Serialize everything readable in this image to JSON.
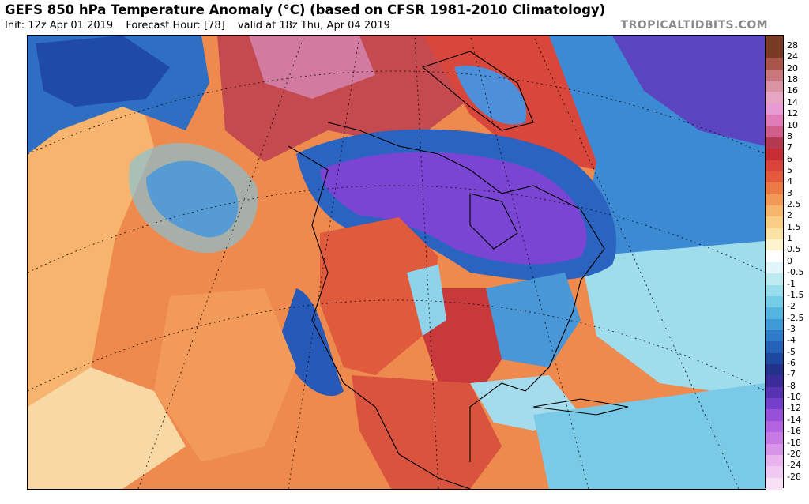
{
  "header": {
    "title": "GEFS 850 hPa Temperature Anomaly (°C) (based on CFSR 1981-2010 Climatology)",
    "init": "Init: 12z Apr 01 2019",
    "forecast_hour": "Forecast Hour: [78]",
    "valid": "valid at 18z Thu, Apr 04 2019",
    "brand": "TROPICALTIDBITS.COM"
  },
  "colorbar": {
    "labels": [
      "28",
      "24",
      "20",
      "18",
      "16",
      "14",
      "12",
      "10",
      "8",
      "7",
      "6",
      "5",
      "4",
      "3",
      "2.5",
      "2",
      "1.5",
      "1",
      "0.5",
      "0",
      "-0.5",
      "-1",
      "-1.5",
      "-2",
      "-2.5",
      "-3",
      "-4",
      "-5",
      "-6",
      "-7",
      "-8",
      "-10",
      "-12",
      "-14",
      "-16",
      "-18",
      "-20",
      "-24",
      "-28"
    ],
    "colors": [
      "#7a3b24",
      "#a8564b",
      "#c9777a",
      "#d993a3",
      "#e6a6c3",
      "#e99ad2",
      "#e07cb8",
      "#cf5f8a",
      "#b43a52",
      "#c62e36",
      "#d9443a",
      "#e35a3c",
      "#ec7a45",
      "#f19a57",
      "#f5b56d",
      "#f8cd86",
      "#fbe3a6",
      "#fdf3cc",
      "#ffffff",
      "#e2f6f9",
      "#bdebf2",
      "#98ddec",
      "#74cde6",
      "#54b6e0",
      "#3d9ad6",
      "#2e7cc9",
      "#2561b6",
      "#1d48a0",
      "#24318a",
      "#3a2b98",
      "#5733b2",
      "#7440c9",
      "#9651d8",
      "#b363df",
      "#c77ae4",
      "#d895e8",
      "#e8b2ee",
      "#f0c9f2",
      "#f8e0f6"
    ]
  },
  "map": {
    "background_color": "#ef8a4f",
    "cold_color": "#7a45d2",
    "warm_color": "#d6443f",
    "coastline_color": "#000000",
    "gridline_color": "#000000"
  }
}
